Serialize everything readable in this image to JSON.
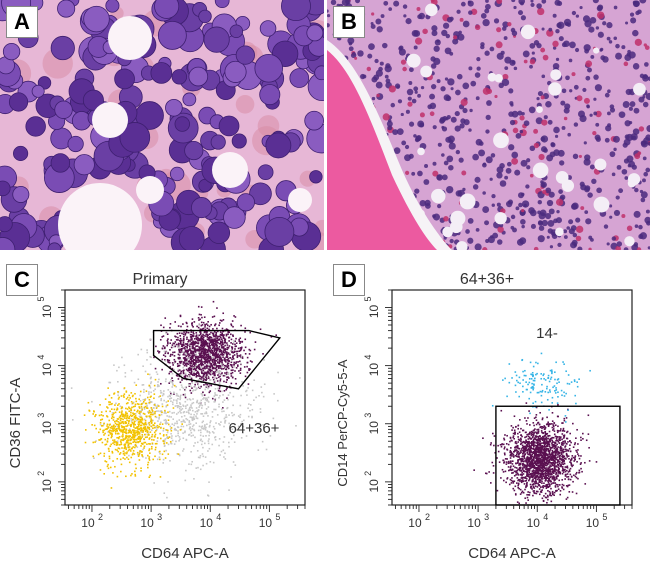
{
  "panels": {
    "a": {
      "letter": "A"
    },
    "b": {
      "letter": "B"
    },
    "c": {
      "letter": "C"
    },
    "d": {
      "letter": "D"
    }
  },
  "chart_data": [
    {
      "type": "scatter",
      "panel": "C",
      "title": "Primary",
      "xlabel": "CD64 APC-A",
      "ylabel": "CD36 FITC-A",
      "x_scale": "log",
      "y_scale": "log",
      "xlim": [
        35,
        400000
      ],
      "ylim": [
        40,
        200000
      ],
      "x_ticks": [
        {
          "exp": "2"
        },
        {
          "exp": "3"
        },
        {
          "exp": "4"
        },
        {
          "exp": "5"
        }
      ],
      "y_ticks": [
        {
          "exp": "2"
        },
        {
          "exp": "3"
        },
        {
          "exp": "4"
        },
        {
          "exp": "5"
        }
      ],
      "gate_label": "64+36+",
      "gate_polygon": [
        [
          1100,
          40000
        ],
        [
          45000,
          40000
        ],
        [
          150000,
          30000
        ],
        [
          30000,
          4000
        ],
        [
          3500,
          6000
        ],
        [
          1100,
          15000
        ]
      ],
      "populations": [
        {
          "name": "gated blasts",
          "color": "#5a1050",
          "center": [
            8000,
            16000
          ],
          "spread": [
            0.32,
            0.28
          ],
          "count": 1400
        },
        {
          "name": "background events",
          "color": "#c8c8c8",
          "center": [
            3500,
            1800
          ],
          "spread": [
            0.6,
            0.5
          ],
          "count": 750
        },
        {
          "name": "yellow population",
          "color": "#f2c200",
          "center": [
            450,
            800
          ],
          "spread": [
            0.28,
            0.32
          ],
          "count": 750
        }
      ]
    },
    {
      "type": "scatter",
      "panel": "D",
      "title": "64+36+",
      "xlabel": "CD64 APC-A",
      "ylabel": "CD14 PerCP-Cy5-5-A",
      "x_scale": "log",
      "y_scale": "log",
      "xlim": [
        35,
        400000
      ],
      "ylim": [
        40,
        200000
      ],
      "x_ticks": [
        {
          "exp": "2"
        },
        {
          "exp": "3"
        },
        {
          "exp": "4"
        },
        {
          "exp": "5"
        }
      ],
      "y_ticks": [
        {
          "exp": "2"
        },
        {
          "exp": "3"
        },
        {
          "exp": "4"
        },
        {
          "exp": "5"
        }
      ],
      "gate_label": "14-",
      "gate_rect": {
        "x": [
          2000,
          250000
        ],
        "y": [
          40,
          2000
        ]
      },
      "populations": [
        {
          "name": "CD14- events",
          "color": "#5a1050",
          "center": [
            11000,
            250
          ],
          "spread": [
            0.28,
            0.3
          ],
          "count": 1800
        },
        {
          "name": "CD14+ events",
          "color": "#36b4e6",
          "center": [
            11000,
            5000
          ],
          "spread": [
            0.3,
            0.2
          ],
          "count": 140
        }
      ]
    }
  ]
}
